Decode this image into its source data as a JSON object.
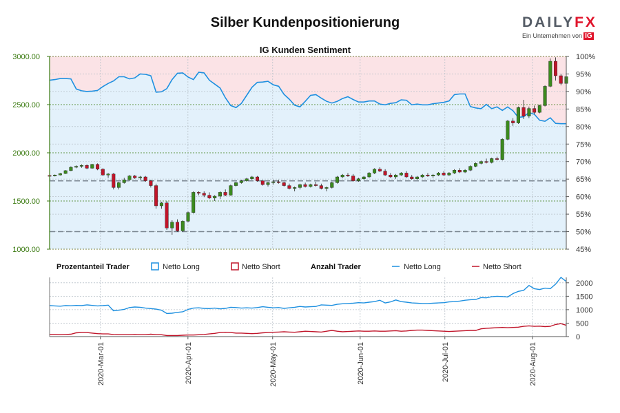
{
  "title": "Silber Kundenpositionierung",
  "logo": {
    "main": "DAILY",
    "main_x": "FX",
    "sub": "Ein Unternehmen von",
    "badge": "IG"
  },
  "colors": {
    "long": "#1e90e0",
    "short": "#c0152a",
    "up": "#3b8a1e",
    "down": "#c0152a",
    "long_area": "#e3f1fb",
    "short_area": "#fbe3e6",
    "price_axis": "#3a7a10"
  },
  "chart_data": [
    {
      "type": "candlestick",
      "title": "IG Kunden Sentiment",
      "y_left_ticks": [
        "3000.00",
        "2500.00",
        "2000.00",
        "1500.00",
        "1000.00"
      ],
      "y_left_range": [
        1000,
        3000
      ],
      "y_right_ticks": [
        "100%",
        "95%",
        "90%",
        "85%",
        "80%",
        "75%",
        "70%",
        "65%",
        "60%",
        "55%",
        "50%",
        "45%"
      ],
      "y_right_range": [
        45,
        100
      ],
      "x_range": [
        "2020-02-12",
        "2020-08-13"
      ],
      "reference_lines": [
        {
          "axis": "right",
          "value": 64.5
        },
        {
          "axis": "right",
          "value": 50.0
        }
      ],
      "series": [
        {
          "name": "Netto Long",
          "type": "area",
          "values": [
            93.2,
            93.4,
            93.7,
            93.7,
            93.6,
            90.7,
            90.2,
            90.0,
            90.1,
            90.3,
            91.4,
            92.3,
            93.0,
            94.2,
            94.2,
            93.6,
            93.9,
            95.0,
            94.9,
            94.5,
            89.8,
            89.9,
            90.8,
            93.4,
            95.2,
            95.3,
            94.1,
            93.4,
            95.5,
            95.3,
            93.2,
            92.1,
            91.0,
            88.2,
            86.0,
            85.4,
            86.6,
            88.9,
            91.2,
            92.6,
            92.7,
            92.9,
            91.9,
            91.5,
            89.2,
            87.8,
            86.1,
            85.6,
            87.2,
            88.9,
            89.1,
            88.1,
            87.2,
            86.7,
            87.2,
            88.0,
            88.5,
            87.7,
            87.0,
            87.0,
            87.3,
            87.3,
            86.4,
            86.2,
            86.6,
            86.8,
            87.6,
            87.5,
            86.2,
            86.4,
            86.2,
            86.2,
            86.5,
            86.7,
            86.9,
            87.3,
            89.1,
            89.3,
            89.3,
            85.7,
            85.3,
            85.1,
            86.3,
            85.1,
            85.6,
            84.6,
            85.6,
            84.5,
            82.6,
            82.8,
            84.0,
            83.5,
            81.8,
            81.5,
            82.5,
            80.9,
            80.8,
            80.8
          ]
        },
        {
          "name": "Netto Short",
          "type": "area",
          "values": [
            6.8,
            6.6,
            6.3,
            6.3,
            6.4,
            9.3,
            9.8,
            10.0,
            9.9,
            9.7,
            8.6,
            7.7,
            7.0,
            5.8,
            5.8,
            6.4,
            6.1,
            5.0,
            5.1,
            5.5,
            10.2,
            10.1,
            9.2,
            6.6,
            4.8,
            4.7,
            5.9,
            6.6,
            4.5,
            4.7,
            6.8,
            7.9,
            9.0,
            11.8,
            14.0,
            14.6,
            13.4,
            11.1,
            8.8,
            7.4,
            7.3,
            7.1,
            8.1,
            8.5,
            10.8,
            12.2,
            13.9,
            14.4,
            12.8,
            11.1,
            10.9,
            11.9,
            12.8,
            13.3,
            12.8,
            12.0,
            11.5,
            12.3,
            13.0,
            13.0,
            12.7,
            12.7,
            13.6,
            13.8,
            13.4,
            13.2,
            12.4,
            12.5,
            13.8,
            13.6,
            13.8,
            13.8,
            13.5,
            13.3,
            13.1,
            12.7,
            10.9,
            10.7,
            10.7,
            14.3,
            14.7,
            14.9,
            13.7,
            14.9,
            14.4,
            15.4,
            14.4,
            15.5,
            17.4,
            17.2,
            16.0,
            16.5,
            18.2,
            18.5,
            17.5,
            19.1,
            19.2,
            19.2
          ]
        },
        {
          "name": "Silber",
          "type": "candlestick",
          "ohlc": [
            [
              1765,
              1770,
              1755,
              1760
            ],
            [
              1760,
              1775,
              1755,
              1770
            ],
            [
              1770,
              1790,
              1765,
              1785
            ],
            [
              1785,
              1820,
              1780,
              1815
            ],
            [
              1815,
              1860,
              1810,
              1850
            ],
            [
              1850,
              1870,
              1840,
              1860
            ],
            [
              1860,
              1880,
              1845,
              1870
            ],
            [
              1870,
              1880,
              1830,
              1840
            ],
            [
              1840,
              1885,
              1835,
              1880
            ],
            [
              1880,
              1890,
              1820,
              1830
            ],
            [
              1830,
              1840,
              1760,
              1770
            ],
            [
              1770,
              1790,
              1740,
              1780
            ],
            [
              1780,
              1790,
              1620,
              1640
            ],
            [
              1640,
              1700,
              1620,
              1690
            ],
            [
              1690,
              1740,
              1680,
              1720
            ],
            [
              1720,
              1770,
              1710,
              1760
            ],
            [
              1760,
              1770,
              1730,
              1740
            ],
            [
              1740,
              1760,
              1720,
              1750
            ],
            [
              1750,
              1760,
              1700,
              1710
            ],
            [
              1710,
              1720,
              1640,
              1660
            ],
            [
              1660,
              1680,
              1420,
              1450
            ],
            [
              1450,
              1490,
              1420,
              1480
            ],
            [
              1480,
              1500,
              1200,
              1220
            ],
            [
              1220,
              1300,
              1150,
              1280
            ],
            [
              1280,
              1310,
              1180,
              1190
            ],
            [
              1190,
              1300,
              1180,
              1290
            ],
            [
              1290,
              1390,
              1280,
              1380
            ],
            [
              1380,
              1600,
              1370,
              1590
            ],
            [
              1590,
              1600,
              1560,
              1580
            ],
            [
              1580,
              1600,
              1540,
              1560
            ],
            [
              1560,
              1590,
              1520,
              1530
            ],
            [
              1530,
              1560,
              1500,
              1550
            ],
            [
              1550,
              1600,
              1520,
              1590
            ],
            [
              1590,
              1620,
              1550,
              1560
            ],
            [
              1560,
              1670,
              1555,
              1660
            ],
            [
              1660,
              1700,
              1650,
              1690
            ],
            [
              1690,
              1720,
              1680,
              1710
            ],
            [
              1710,
              1740,
              1700,
              1730
            ],
            [
              1730,
              1760,
              1720,
              1750
            ],
            [
              1750,
              1760,
              1700,
              1710
            ],
            [
              1710,
              1720,
              1660,
              1670
            ],
            [
              1670,
              1700,
              1650,
              1690
            ],
            [
              1690,
              1720,
              1670,
              1700
            ],
            [
              1700,
              1720,
              1680,
              1690
            ],
            [
              1690,
              1700,
              1650,
              1660
            ],
            [
              1660,
              1680,
              1620,
              1630
            ],
            [
              1630,
              1650,
              1600,
              1640
            ],
            [
              1640,
              1680,
              1620,
              1670
            ],
            [
              1670,
              1690,
              1640,
              1650
            ],
            [
              1650,
              1680,
              1640,
              1670
            ],
            [
              1670,
              1700,
              1650,
              1660
            ],
            [
              1660,
              1680,
              1620,
              1630
            ],
            [
              1630,
              1650,
              1600,
              1640
            ],
            [
              1640,
              1700,
              1630,
              1690
            ],
            [
              1690,
              1760,
              1680,
              1750
            ],
            [
              1750,
              1780,
              1740,
              1770
            ],
            [
              1770,
              1790,
              1750,
              1760
            ],
            [
              1760,
              1780,
              1700,
              1710
            ],
            [
              1710,
              1740,
              1700,
              1730
            ],
            [
              1730,
              1760,
              1720,
              1750
            ],
            [
              1750,
              1800,
              1740,
              1790
            ],
            [
              1790,
              1840,
              1780,
              1830
            ],
            [
              1830,
              1850,
              1800,
              1810
            ],
            [
              1810,
              1830,
              1760,
              1770
            ],
            [
              1770,
              1790,
              1740,
              1750
            ],
            [
              1750,
              1780,
              1730,
              1770
            ],
            [
              1770,
              1800,
              1760,
              1790
            ],
            [
              1790,
              1810,
              1740,
              1750
            ],
            [
              1750,
              1770,
              1720,
              1730
            ],
            [
              1730,
              1760,
              1720,
              1750
            ],
            [
              1750,
              1780,
              1740,
              1770
            ],
            [
              1770,
              1790,
              1750,
              1760
            ],
            [
              1760,
              1780,
              1740,
              1770
            ],
            [
              1770,
              1800,
              1760,
              1790
            ],
            [
              1790,
              1810,
              1760,
              1770
            ],
            [
              1770,
              1800,
              1760,
              1790
            ],
            [
              1790,
              1830,
              1780,
              1820
            ],
            [
              1820,
              1840,
              1790,
              1800
            ],
            [
              1800,
              1830,
              1790,
              1820
            ],
            [
              1820,
              1870,
              1810,
              1860
            ],
            [
              1860,
              1900,
              1850,
              1890
            ],
            [
              1890,
              1920,
              1880,
              1910
            ],
            [
              1910,
              1940,
              1890,
              1900
            ],
            [
              1900,
              1950,
              1890,
              1940
            ],
            [
              1940,
              1960,
              1920,
              1930
            ],
            [
              1930,
              2150,
              1920,
              2140
            ],
            [
              2140,
              2340,
              2130,
              2330
            ],
            [
              2330,
              2360,
              2280,
              2310
            ],
            [
              2310,
              2480,
              2300,
              2470
            ],
            [
              2470,
              2550,
              2350,
              2380
            ],
            [
              2380,
              2480,
              2360,
              2460
            ],
            [
              2460,
              2490,
              2400,
              2420
            ],
            [
              2420,
              2500,
              2410,
              2490
            ],
            [
              2490,
              2700,
              2480,
              2690
            ],
            [
              2690,
              2980,
              2680,
              2950
            ],
            [
              2950,
              2990,
              2750,
              2800
            ],
            [
              2800,
              2820,
              2700,
              2720
            ],
            [
              2720,
              2800,
              2700,
              2790
            ]
          ]
        }
      ]
    },
    {
      "type": "line",
      "title": "Anzahl Trader",
      "y_ticks": [
        "2000",
        "1500",
        "1000",
        "500",
        "0"
      ],
      "y_range": [
        0,
        2200
      ],
      "x_ticks": [
        "2020-Mar-01",
        "2020-Apr-01",
        "2020-May-01",
        "2020-Jun-01",
        "2020-Jul-01",
        "2020-Aug-01"
      ],
      "x_range": [
        "2020-02-12",
        "2020-08-13"
      ],
      "series": [
        {
          "name": "Netto Long",
          "values": [
            1150,
            1140,
            1130,
            1150,
            1145,
            1160,
            1150,
            1180,
            1160,
            1140,
            1150,
            1170,
            960,
            980,
            1010,
            1080,
            1100,
            1090,
            1060,
            1040,
            1020,
            980,
            860,
            870,
            900,
            920,
            1010,
            1060,
            1070,
            1050,
            1040,
            1060,
            1030,
            1050,
            1090,
            1080,
            1060,
            1070,
            1060,
            1080,
            1110,
            1090,
            1070,
            1080,
            1050,
            1070,
            1090,
            1120,
            1100,
            1110,
            1120,
            1180,
            1170,
            1160,
            1200,
            1220,
            1230,
            1240,
            1260,
            1250,
            1280,
            1300,
            1350,
            1250,
            1290,
            1360,
            1300,
            1280,
            1250,
            1240,
            1230,
            1230,
            1240,
            1250,
            1260,
            1290,
            1300,
            1320,
            1350,
            1370,
            1380,
            1450,
            1440,
            1480,
            1500,
            1490,
            1470,
            1600,
            1680,
            1720,
            1900,
            1780,
            1750,
            1800,
            1780,
            1950,
            2200,
            2050
          ]
        },
        {
          "name": "Netto Short",
          "values": [
            80,
            80,
            70,
            80,
            90,
            140,
            150,
            150,
            130,
            110,
            100,
            100,
            75,
            70,
            70,
            70,
            75,
            70,
            70,
            90,
            70,
            70,
            40,
            40,
            40,
            50,
            60,
            60,
            70,
            80,
            100,
            120,
            150,
            160,
            150,
            130,
            130,
            120,
            110,
            120,
            140,
            150,
            160,
            170,
            180,
            170,
            160,
            180,
            200,
            190,
            180,
            170,
            200,
            230,
            200,
            180,
            190,
            200,
            210,
            200,
            200,
            210,
            200,
            200,
            210,
            220,
            200,
            210,
            230,
            240,
            240,
            230,
            220,
            210,
            200,
            190,
            200,
            210,
            220,
            230,
            230,
            290,
            310,
            320,
            330,
            340,
            330,
            340,
            350,
            380,
            400,
            380,
            390,
            370,
            380,
            450,
            480,
            420
          ]
        }
      ]
    }
  ],
  "legend": {
    "pct_label": "Prozentanteil Trader",
    "pct_long": "Netto Long",
    "pct_short": "Netto Short",
    "count_label": "Anzahl Trader",
    "count_long": "Netto Long",
    "count_short": "Netto Short"
  }
}
